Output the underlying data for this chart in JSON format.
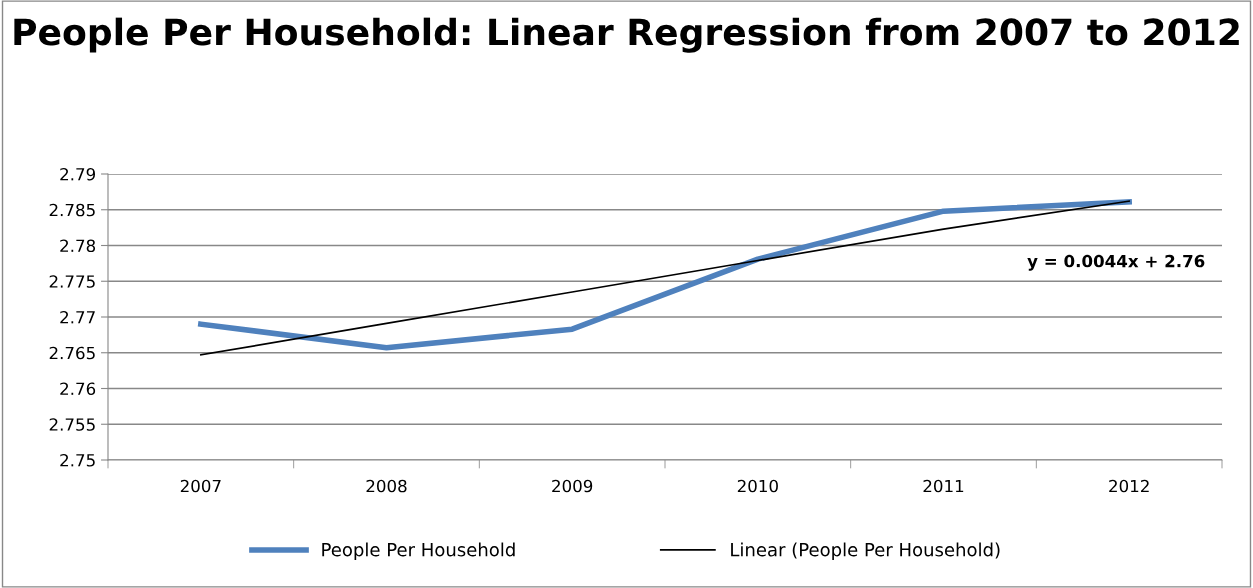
{
  "chart_data": {
    "type": "line",
    "title": "People Per Household: Linear Regression from 2007 to 2012",
    "categories": [
      "2007",
      "2008",
      "2009",
      "2010",
      "2011",
      "2012"
    ],
    "series": [
      {
        "name": "People Per Household",
        "color": "#4f81bd",
        "values": [
          2.769,
          2.7657,
          2.7683,
          2.7781,
          2.7848,
          2.7861
        ]
      },
      {
        "name": "Linear (People Per Household)",
        "color": "#000000",
        "values": [
          2.7647,
          2.7691,
          2.7735,
          2.7779,
          2.7823,
          2.7862
        ]
      }
    ],
    "annotations": [
      "y = 0.0044x + 2.76"
    ],
    "ylim": [
      2.75,
      2.79
    ],
    "yticks": [
      2.75,
      2.755,
      2.76,
      2.765,
      2.77,
      2.775,
      2.78,
      2.785,
      2.79
    ],
    "grid": "y",
    "legend": "bottom",
    "marker": "none",
    "line_style": "solid"
  }
}
